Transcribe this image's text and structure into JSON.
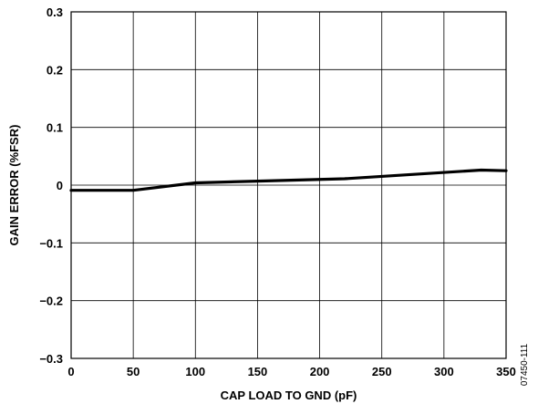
{
  "chart_data": {
    "type": "line",
    "xlabel": "CAP LOAD TO GND (pF)",
    "ylabel": "GAIN ERROR (%FSR)",
    "figure_code": "07450-111",
    "xlim": [
      0,
      350
    ],
    "ylim": [
      -0.3,
      0.3
    ],
    "x_ticks": [
      0,
      50,
      100,
      150,
      200,
      250,
      300,
      350
    ],
    "x_tick_labels": [
      "0",
      "50",
      "100",
      "150",
      "200",
      "250",
      "300",
      "350"
    ],
    "y_ticks": [
      0.3,
      0.2,
      0.1,
      0,
      -0.1,
      -0.2,
      -0.3
    ],
    "y_tick_labels": [
      "0.3",
      "0.2",
      "0.1",
      "0",
      "−0.1",
      "−0.2",
      "−0.3"
    ],
    "grid": true,
    "series": [
      {
        "color": "#000000",
        "x": [
          0,
          50,
          100,
          150,
          220,
          330,
          350
        ],
        "y": [
          -0.009,
          -0.009,
          0.004,
          0.007,
          0.011,
          0.026,
          0.025
        ]
      }
    ]
  }
}
